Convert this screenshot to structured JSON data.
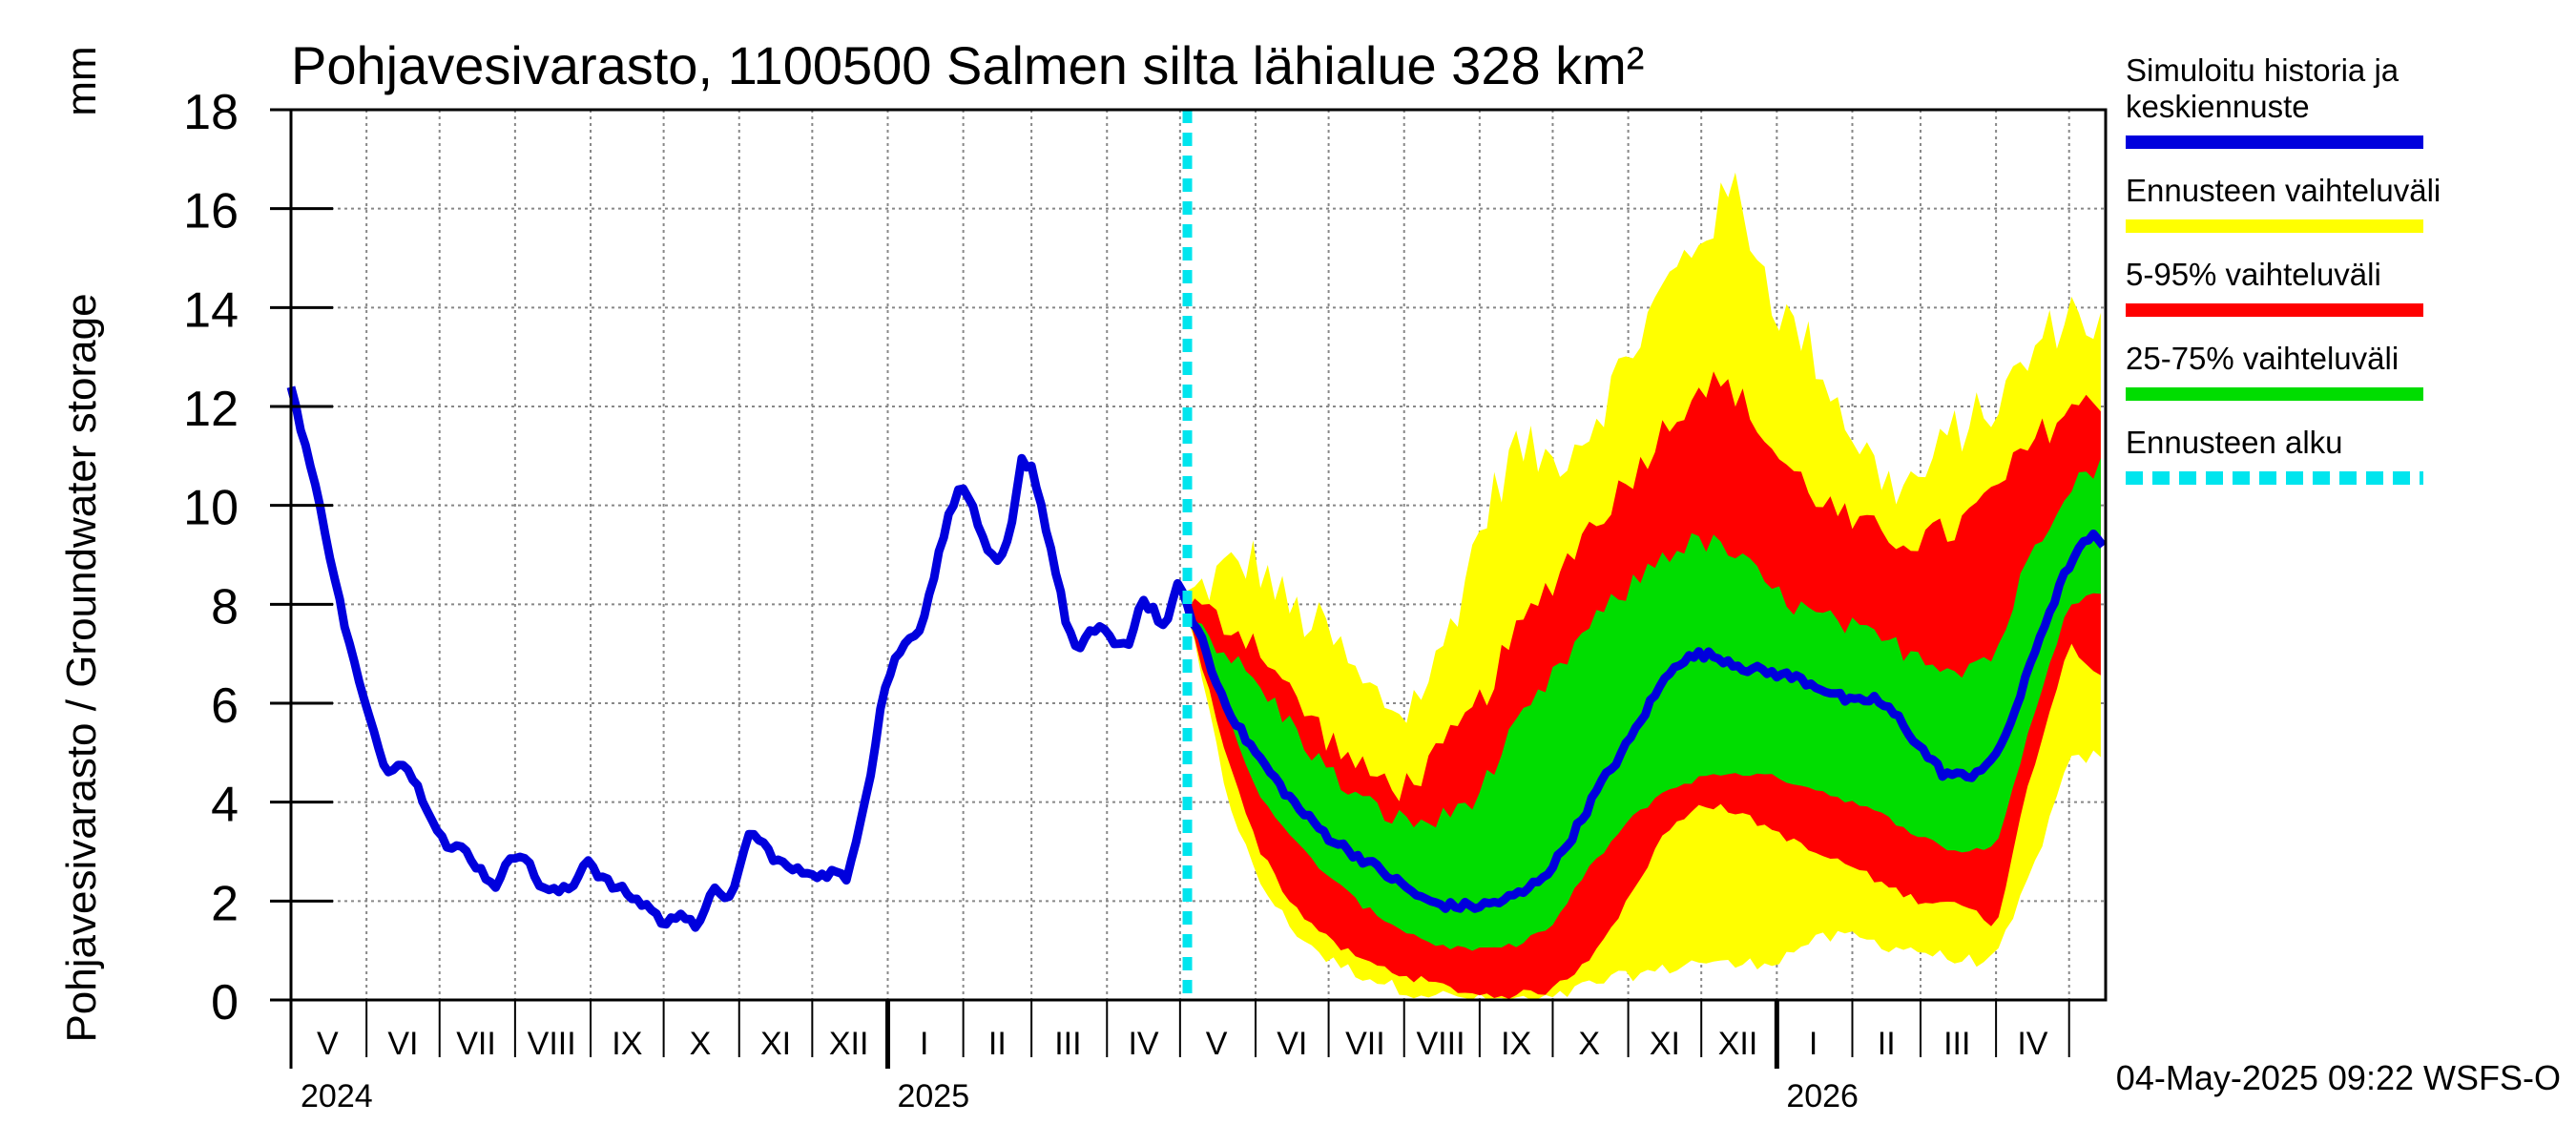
{
  "chart_data": {
    "type": "area",
    "title": "Pohjavesivarasto, 1100500 Salmen silta lähialue 328 km²",
    "ylabel": "Pohjavesivarasto / Groundwater storage",
    "yunit": "mm",
    "ylim": [
      0,
      18
    ],
    "yticks": [
      0,
      2,
      4,
      6,
      8,
      10,
      12,
      14,
      16,
      18
    ],
    "xlim": [
      "2024-05-01",
      "2026-05-16"
    ],
    "grid": true,
    "legend_position": "right",
    "month_labels": [
      {
        "label": "V",
        "date": "2024-05-16"
      },
      {
        "label": "VI",
        "date": "2024-06-16"
      },
      {
        "label": "VII",
        "date": "2024-07-16"
      },
      {
        "label": "VIII",
        "date": "2024-08-16"
      },
      {
        "label": "IX",
        "date": "2024-09-16"
      },
      {
        "label": "X",
        "date": "2024-10-16"
      },
      {
        "label": "XI",
        "date": "2024-11-16"
      },
      {
        "label": "XII",
        "date": "2024-12-16"
      },
      {
        "label": "I",
        "date": "2025-01-16"
      },
      {
        "label": "II",
        "date": "2025-02-15"
      },
      {
        "label": "III",
        "date": "2025-03-16"
      },
      {
        "label": "IV",
        "date": "2025-04-16"
      },
      {
        "label": "V",
        "date": "2025-05-16"
      },
      {
        "label": "VI",
        "date": "2025-06-16"
      },
      {
        "label": "VII",
        "date": "2025-07-16"
      },
      {
        "label": "VIII",
        "date": "2025-08-16"
      },
      {
        "label": "IX",
        "date": "2025-09-16"
      },
      {
        "label": "X",
        "date": "2025-10-16"
      },
      {
        "label": "XI",
        "date": "2025-11-16"
      },
      {
        "label": "XII",
        "date": "2025-12-16"
      },
      {
        "label": "I",
        "date": "2026-01-16"
      },
      {
        "label": "II",
        "date": "2026-02-15"
      },
      {
        "label": "III",
        "date": "2026-03-16"
      },
      {
        "label": "IV",
        "date": "2026-04-16"
      }
    ],
    "month_boundaries": [
      "2024-06-01",
      "2024-07-01",
      "2024-08-01",
      "2024-09-01",
      "2024-10-01",
      "2024-11-01",
      "2024-12-01",
      "2025-01-01",
      "2025-02-01",
      "2025-03-01",
      "2025-04-01",
      "2025-05-01",
      "2025-06-01",
      "2025-07-01",
      "2025-08-01",
      "2025-09-01",
      "2025-10-01",
      "2025-11-01",
      "2025-12-01",
      "2026-01-01",
      "2026-02-01",
      "2026-03-01",
      "2026-04-01",
      "2026-05-01"
    ],
    "year_labels": [
      {
        "label": "2024",
        "date": "2024-05-01"
      },
      {
        "label": "2025",
        "date": "2025-01-01"
      },
      {
        "label": "2026",
        "date": "2026-01-01"
      }
    ],
    "forecast_start": "2025-05-04",
    "series": [
      {
        "name": "Simuloitu historia ja keskiennuste",
        "color": "#0000dd",
        "kind": "line",
        "x": [
          "2024-05-01",
          "2024-05-08",
          "2024-05-15",
          "2024-05-22",
          "2024-05-29",
          "2024-06-05",
          "2024-06-10",
          "2024-06-15",
          "2024-06-20",
          "2024-06-25",
          "2024-07-01",
          "2024-07-05",
          "2024-07-10",
          "2024-07-15",
          "2024-07-20",
          "2024-07-25",
          "2024-07-30",
          "2024-08-04",
          "2024-08-10",
          "2024-08-15",
          "2024-08-20",
          "2024-08-25",
          "2024-08-30",
          "2024-09-05",
          "2024-09-10",
          "2024-09-15",
          "2024-09-20",
          "2024-09-25",
          "2024-09-30",
          "2024-10-02",
          "2024-10-08",
          "2024-10-13",
          "2024-10-15",
          "2024-10-22",
          "2024-10-29",
          "2024-11-05",
          "2024-11-10",
          "2024-11-15",
          "2024-11-20",
          "2024-11-25",
          "2024-12-01",
          "2024-12-05",
          "2024-12-10",
          "2024-12-15",
          "2024-12-20",
          "2024-12-25",
          "2024-12-30",
          "2025-01-05",
          "2025-01-10",
          "2025-01-15",
          "2025-01-20",
          "2025-01-25",
          "2025-01-30",
          "2025-02-05",
          "2025-02-10",
          "2025-02-15",
          "2025-02-20",
          "2025-02-25",
          "2025-03-01",
          "2025-03-05",
          "2025-03-10",
          "2025-03-15",
          "2025-03-20",
          "2025-03-25",
          "2025-03-30",
          "2025-04-05",
          "2025-04-10",
          "2025-04-15",
          "2025-04-20",
          "2025-04-25",
          "2025-04-30",
          "2025-05-04",
          "2025-05-10",
          "2025-05-15",
          "2025-05-20",
          "2025-05-25",
          "2025-06-01",
          "2025-06-10",
          "2025-06-20",
          "2025-07-01",
          "2025-07-10",
          "2025-07-20",
          "2025-08-01",
          "2025-08-10",
          "2025-08-20",
          "2025-09-01",
          "2025-09-10",
          "2025-09-20",
          "2025-10-01",
          "2025-10-10",
          "2025-10-20",
          "2025-11-01",
          "2025-11-10",
          "2025-11-20",
          "2025-12-01",
          "2025-12-10",
          "2025-12-20",
          "2026-01-01",
          "2026-01-10",
          "2026-01-20",
          "2026-02-01",
          "2026-02-10",
          "2026-02-20",
          "2026-03-01",
          "2026-03-10",
          "2026-03-20",
          "2026-04-01",
          "2026-04-10",
          "2026-04-20",
          "2026-05-01",
          "2026-05-10",
          "2026-05-16"
        ],
        "y": [
          12.4,
          11.0,
          9.5,
          7.8,
          6.4,
          5.2,
          4.6,
          4.9,
          4.5,
          4.0,
          3.4,
          3.0,
          3.1,
          2.8,
          2.5,
          2.3,
          2.9,
          3.0,
          2.4,
          2.2,
          2.2,
          2.3,
          2.9,
          2.5,
          2.3,
          2.2,
          2.0,
          1.9,
          1.6,
          1.5,
          1.8,
          1.6,
          1.4,
          2.3,
          2.0,
          3.4,
          3.2,
          2.9,
          2.7,
          2.6,
          2.6,
          2.5,
          2.6,
          2.4,
          3.5,
          4.6,
          6.2,
          7.0,
          7.3,
          7.6,
          8.6,
          9.6,
          10.4,
          10.0,
          9.1,
          8.8,
          9.3,
          10.9,
          10.8,
          10.0,
          8.9,
          7.7,
          7.0,
          7.4,
          7.6,
          7.1,
          7.2,
          8.1,
          7.9,
          7.4,
          8.5,
          7.9,
          7.3,
          6.5,
          6.0,
          5.5,
          5.0,
          4.4,
          3.8,
          3.3,
          3.0,
          2.7,
          2.3,
          2.0,
          1.9,
          1.9,
          2.0,
          2.2,
          2.7,
          3.4,
          4.3,
          5.2,
          6.0,
          6.8,
          7.0,
          6.9,
          6.7,
          6.6,
          6.5,
          6.3,
          6.0,
          6.1,
          5.7,
          5.1,
          4.6,
          4.5,
          4.9,
          6.0,
          7.5,
          8.8,
          9.4,
          9.1
        ]
      },
      {
        "name": "Ennusteen vaihteluväli",
        "color": "#ffff00",
        "kind": "band",
        "x": [
          "2025-05-04",
          "2025-05-20",
          "2025-06-01",
          "2025-06-15",
          "2025-07-01",
          "2025-07-15",
          "2025-08-01",
          "2025-08-15",
          "2025-09-01",
          "2025-09-15",
          "2025-10-01",
          "2025-10-15",
          "2025-11-01",
          "2025-11-15",
          "2025-12-01",
          "2025-12-15",
          "2026-01-01",
          "2026-01-15",
          "2026-02-01",
          "2026-02-15",
          "2026-03-01",
          "2026-03-15",
          "2026-04-01",
          "2026-04-15",
          "2026-05-01",
          "2026-05-16"
        ],
        "low": [
          7.8,
          4.2,
          2.5,
          1.5,
          0.8,
          0.5,
          0.2,
          0.1,
          0.0,
          0.0,
          0.0,
          0.3,
          0.5,
          0.6,
          0.8,
          0.7,
          0.8,
          1.2,
          1.3,
          1.1,
          1.0,
          0.8,
          0.8,
          2.5,
          4.8,
          5.0
        ],
        "high": [
          8.1,
          8.7,
          8.9,
          7.9,
          7.4,
          6.3,
          5.8,
          6.8,
          9.5,
          11.2,
          10.9,
          11.5,
          13.0,
          14.3,
          15.5,
          16.4,
          14.0,
          13.2,
          11.5,
          10.4,
          10.5,
          11.5,
          12.0,
          13.0,
          14.0,
          13.5
        ]
      },
      {
        "name": "5-95% vaihteluväli",
        "color": "#ff0000",
        "kind": "band",
        "x": [
          "2025-05-04",
          "2025-05-20",
          "2025-06-01",
          "2025-06-15",
          "2025-07-01",
          "2025-07-15",
          "2025-08-01",
          "2025-08-15",
          "2025-09-01",
          "2025-09-15",
          "2025-10-01",
          "2025-10-15",
          "2025-11-01",
          "2025-11-15",
          "2025-12-01",
          "2025-12-15",
          "2026-01-01",
          "2026-01-15",
          "2026-02-01",
          "2026-02-15",
          "2026-03-01",
          "2026-03-15",
          "2026-04-01",
          "2026-04-15",
          "2026-05-01",
          "2026-05-16"
        ],
        "low": [
          7.8,
          5.0,
          3.2,
          2.0,
          1.2,
          0.8,
          0.5,
          0.3,
          0.1,
          0.1,
          0.2,
          0.8,
          2.0,
          3.3,
          4.0,
          3.8,
          3.4,
          3.0,
          2.7,
          2.3,
          2.0,
          2.0,
          1.5,
          4.5,
          7.2,
          6.5
        ],
        "high": [
          8.0,
          7.6,
          7.3,
          6.2,
          5.3,
          4.6,
          4.3,
          4.9,
          6.0,
          7.3,
          8.5,
          9.5,
          10.5,
          11.5,
          12.5,
          12.3,
          11.0,
          10.3,
          9.6,
          9.4,
          9.3,
          9.5,
          10.3,
          11.2,
          12.0,
          12.0
        ]
      },
      {
        "name": "25-75% vaihteluväli",
        "color": "#00dd00",
        "kind": "band",
        "x": [
          "2025-05-04",
          "2025-05-20",
          "2025-06-01",
          "2025-06-15",
          "2025-07-01",
          "2025-07-15",
          "2025-08-01",
          "2025-08-15",
          "2025-09-01",
          "2025-09-15",
          "2025-10-01",
          "2025-10-15",
          "2025-11-01",
          "2025-11-15",
          "2025-12-01",
          "2025-12-15",
          "2026-01-01",
          "2026-01-15",
          "2026-02-01",
          "2026-02-15",
          "2026-03-01",
          "2026-03-15",
          "2026-04-01",
          "2026-04-15",
          "2026-05-01",
          "2026-05-16"
        ],
        "low": [
          7.8,
          5.8,
          4.3,
          3.3,
          2.5,
          1.9,
          1.4,
          1.1,
          1.0,
          1.1,
          1.5,
          2.6,
          3.6,
          4.2,
          4.5,
          4.6,
          4.5,
          4.3,
          4.0,
          3.7,
          3.3,
          3.0,
          3.1,
          5.5,
          8.0,
          8.3
        ],
        "high": [
          7.9,
          7.0,
          6.4,
          5.6,
          4.6,
          4.0,
          3.6,
          3.6,
          4.2,
          5.4,
          6.5,
          7.5,
          8.3,
          9.0,
          9.3,
          9.0,
          8.2,
          7.8,
          7.5,
          7.2,
          7.0,
          6.7,
          7.0,
          9.0,
          10.5,
          10.8
        ]
      },
      {
        "name": "Ennusteen alku",
        "color": "#00e5ee",
        "kind": "vline",
        "x": [
          "2025-05-04"
        ]
      }
    ]
  },
  "legend": [
    {
      "lines": [
        "Simuloitu historia ja",
        "keskiennuste"
      ],
      "color": "#0000dd",
      "style": "solid"
    },
    {
      "lines": [
        "Ennusteen vaihteluväli"
      ],
      "color": "#ffff00",
      "style": "solid"
    },
    {
      "lines": [
        "5-95% vaihteluväli"
      ],
      "color": "#ff0000",
      "style": "solid"
    },
    {
      "lines": [
        "25-75% vaihteluväli"
      ],
      "color": "#00dd00",
      "style": "solid"
    },
    {
      "lines": [
        "Ennusteen alku"
      ],
      "color": "#00e5ee",
      "style": "dashed"
    }
  ],
  "footer": {
    "timestamp": "04-May-2025 09:22 WSFS-O"
  }
}
